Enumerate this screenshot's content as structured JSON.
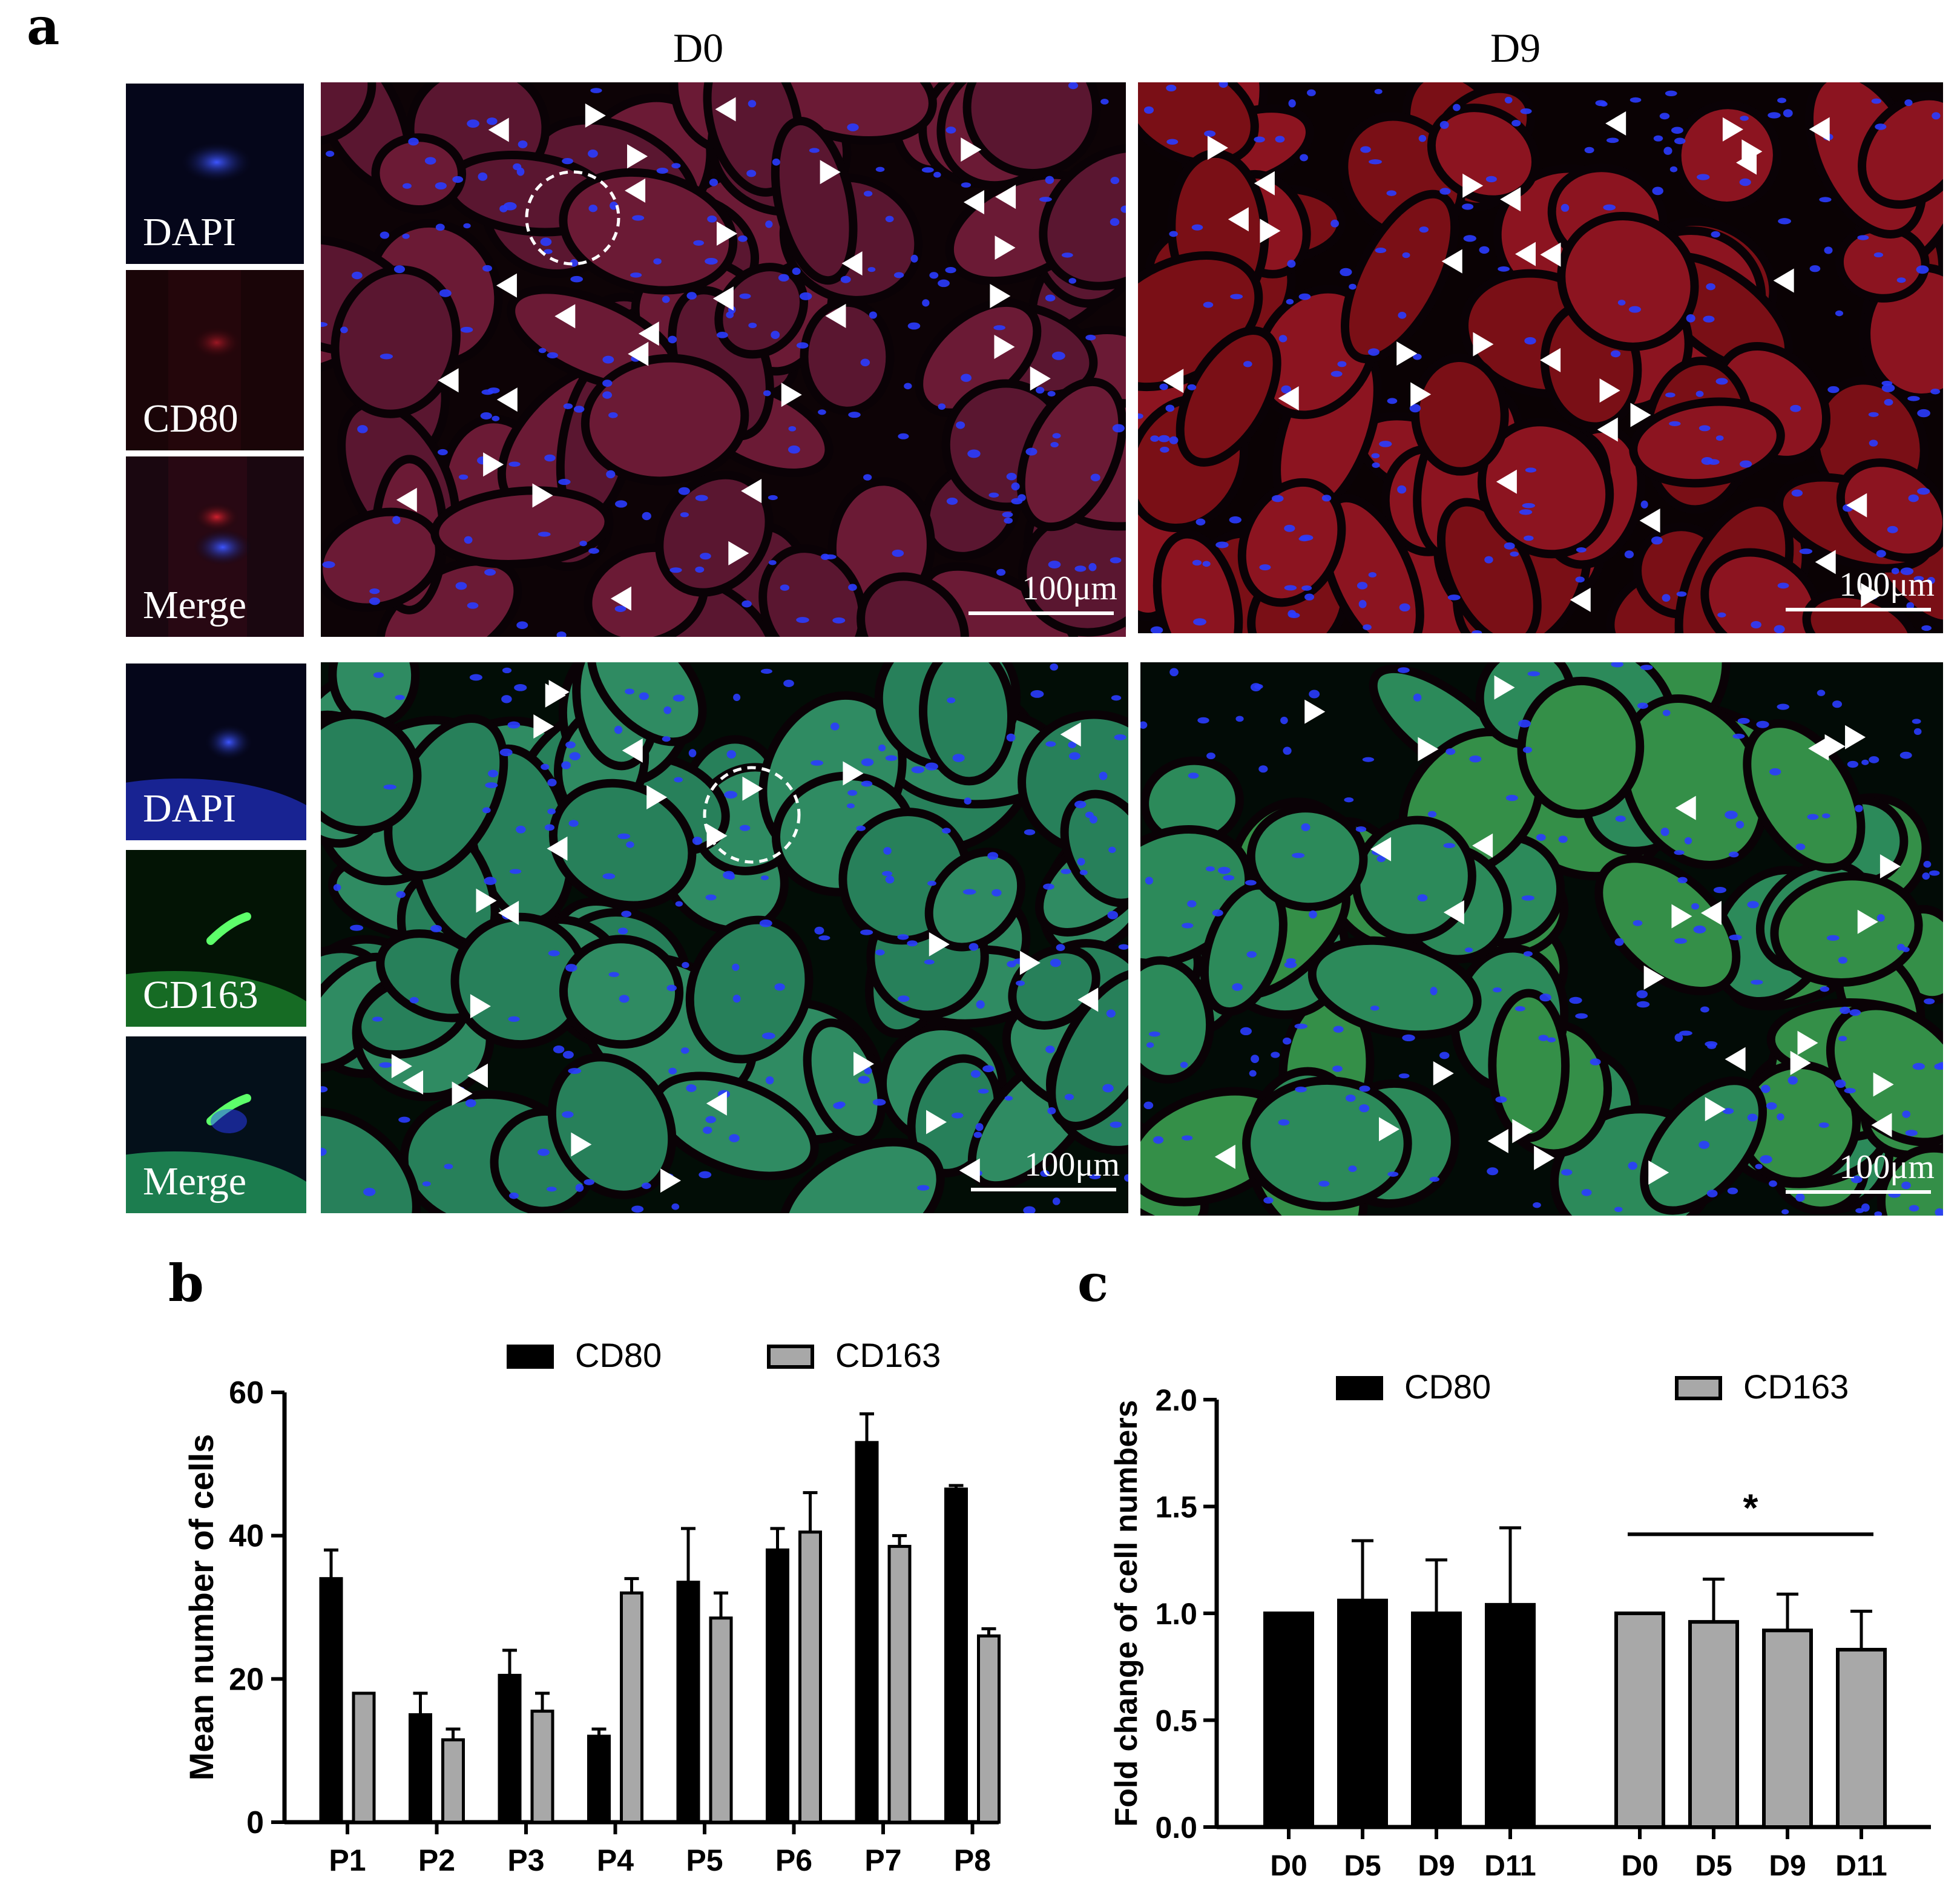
{
  "panel_a": {
    "label": "a",
    "col_d0": "D0",
    "col_d9": "D9",
    "top_insets": [
      "DAPI",
      "CD80",
      "Merge"
    ],
    "bottom_insets": [
      "DAPI",
      "CD163",
      "Merge"
    ],
    "scale_bar": "100μm"
  },
  "panel_b": {
    "label": "b"
  },
  "panel_c": {
    "label": "c"
  },
  "colors": {
    "cd80": "#000000",
    "cd163": "#a8a8a8",
    "red_stain": "#8a1a2a",
    "green_stain": "#2f8f55",
    "dapi": "#2a3cff"
  },
  "chart_data": [
    {
      "type": "bar",
      "categories": [
        "P1",
        "P2",
        "P3",
        "P4",
        "P5",
        "P6",
        "P7",
        "P8"
      ],
      "series": [
        {
          "name": "CD80",
          "values": [
            34,
            15,
            20.5,
            12,
            33.5,
            38,
            53,
            46.5
          ],
          "errors": [
            4,
            3,
            3.5,
            1,
            7.5,
            3,
            4,
            0.5
          ]
        },
        {
          "name": "CD163",
          "values": [
            18,
            11.5,
            15.5,
            32,
            28.5,
            40.5,
            38.5,
            26
          ],
          "errors": [
            0,
            1.5,
            2.5,
            2,
            3.5,
            5.5,
            1.5,
            1
          ]
        }
      ],
      "ylabel": "Mean number of cells",
      "ylim": [
        0,
        60
      ],
      "yticks": [
        0,
        20,
        40,
        60
      ],
      "legend": "top"
    },
    {
      "type": "bar",
      "series": [
        {
          "name": "CD80",
          "categories": [
            "D0",
            "D5",
            "D9",
            "D11"
          ],
          "values": [
            1.0,
            1.06,
            1.0,
            1.04
          ],
          "errors": [
            0,
            0.28,
            0.25,
            0.36
          ]
        },
        {
          "name": "CD163",
          "categories": [
            "D0",
            "D5",
            "D9",
            "D11"
          ],
          "values": [
            1.0,
            0.96,
            0.92,
            0.83
          ],
          "errors": [
            0,
            0.2,
            0.17,
            0.18
          ]
        }
      ],
      "ylabel": "Fold change of cell numbers",
      "ylim": [
        0,
        2.0
      ],
      "yticks": [
        "0.0",
        "0.5",
        "1.0",
        "1.5",
        "2.0"
      ],
      "significance": {
        "label": "*",
        "from": "D0",
        "to": "D11",
        "series": "CD163"
      },
      "legend": "top"
    }
  ]
}
